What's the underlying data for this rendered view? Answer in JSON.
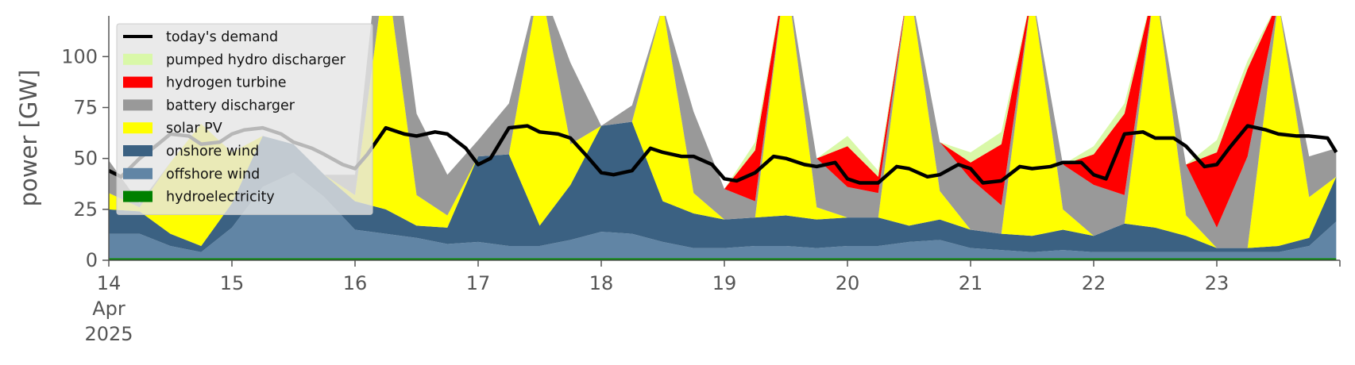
{
  "chart_data": {
    "type": "area",
    "ylabel": "power [GW]",
    "ylim": [
      0,
      120
    ],
    "yticks": [
      0,
      25,
      50,
      75,
      100
    ],
    "xlim": [
      0,
      10
    ],
    "xticks": [
      {
        "x": 0,
        "label": "14",
        "sub": [
          "Apr",
          "2025"
        ]
      },
      {
        "x": 1,
        "label": "15"
      },
      {
        "x": 2,
        "label": "16"
      },
      {
        "x": 3,
        "label": "17"
      },
      {
        "x": 4,
        "label": "18"
      },
      {
        "x": 5,
        "label": "19"
      },
      {
        "x": 6,
        "label": "20"
      },
      {
        "x": 7,
        "label": "21"
      },
      {
        "x": 8,
        "label": "22"
      },
      {
        "x": 9,
        "label": "23"
      }
    ],
    "legend_position": "top-left",
    "grid": false,
    "legend": [
      {
        "name": "today's demand",
        "color": "#000000",
        "kind": "line"
      },
      {
        "name": "pumped hydro discharger",
        "color": "#d9f8a8",
        "kind": "patch"
      },
      {
        "name": "hydrogen turbine",
        "color": "#ff0000",
        "kind": "patch"
      },
      {
        "name": "battery discharger",
        "color": "#999999",
        "kind": "patch"
      },
      {
        "name": "solar PV",
        "color": "#ffff00",
        "kind": "patch"
      },
      {
        "name": "onshore wind",
        "color": "#3b6182",
        "kind": "patch"
      },
      {
        "name": "offshore wind",
        "color": "#6185a5",
        "kind": "patch"
      },
      {
        "name": "hydroelectricity",
        "color": "#008000",
        "kind": "patch"
      }
    ],
    "x": [
      0.0,
      0.25,
      0.5,
      0.75,
      1.0,
      1.25,
      1.5,
      1.75,
      2.0,
      2.25,
      2.5,
      2.75,
      3.0,
      3.25,
      3.5,
      3.75,
      4.0,
      4.25,
      4.5,
      4.75,
      5.0,
      5.25,
      5.5,
      5.75,
      6.0,
      6.25,
      6.5,
      6.75,
      7.0,
      7.25,
      7.5,
      7.75,
      8.0,
      8.25,
      8.5,
      8.75,
      9.0,
      9.25,
      9.5,
      9.75,
      9.97
    ],
    "series": [
      {
        "name": "hydroelectricity",
        "color": "#008000",
        "values": [
          1,
          1,
          1,
          1,
          1,
          1,
          1,
          1,
          1,
          1,
          1,
          1,
          1,
          1,
          1,
          1,
          1,
          1,
          1,
          1,
          1,
          1,
          1,
          1,
          1,
          1,
          1,
          1,
          1,
          1,
          1,
          1,
          1,
          1,
          1,
          1,
          1,
          1,
          1,
          1,
          1
        ]
      },
      {
        "name": "offshore wind",
        "color": "#6185a5",
        "values": [
          12,
          12,
          6,
          3,
          15,
          35,
          42,
          30,
          14,
          12,
          10,
          7,
          8,
          6,
          6,
          9,
          13,
          12,
          8,
          5,
          5,
          6,
          6,
          5,
          6,
          6,
          8,
          9,
          5,
          4,
          3,
          4,
          3,
          3,
          3,
          3,
          3,
          3,
          3,
          6,
          18
        ]
      },
      {
        "name": "onshore wind",
        "color": "#3b6182",
        "values": [
          12,
          11,
          6,
          3,
          12,
          25,
          14,
          11,
          14,
          12,
          6,
          8,
          42,
          45,
          10,
          27,
          52,
          55,
          20,
          17,
          14,
          14,
          15,
          14,
          14,
          14,
          8,
          10,
          9,
          8,
          8,
          10,
          8,
          14,
          12,
          8,
          2,
          2,
          3,
          4,
          22
        ]
      },
      {
        "name": "solar PV",
        "color": "#ffff00",
        "values": [
          8,
          2,
          35,
          60,
          25,
          0,
          0,
          0,
          3,
          120,
          15,
          6,
          0,
          0,
          120,
          20,
          0,
          0,
          96,
          10,
          0,
          0,
          120,
          6,
          0,
          0,
          120,
          14,
          0,
          0,
          120,
          10,
          0,
          0,
          120,
          10,
          0,
          0,
          120,
          20,
          0
        ]
      },
      {
        "name": "battery discharger",
        "color": "#999999",
        "values": [
          16,
          2,
          0,
          0,
          0,
          0,
          0,
          0,
          10,
          40,
          40,
          20,
          8,
          25,
          0,
          40,
          0,
          8,
          0,
          40,
          15,
          8,
          0,
          24,
          15,
          12,
          0,
          24,
          25,
          14,
          0,
          22,
          25,
          14,
          0,
          25,
          10,
          45,
          0,
          20,
          14
        ]
      },
      {
        "name": "hydrogen turbine",
        "color": "#ff0000",
        "values": [
          0,
          0,
          0,
          0,
          0,
          0,
          0,
          0,
          0,
          0,
          0,
          0,
          0,
          0,
          0,
          0,
          0,
          0,
          0,
          0,
          0,
          25,
          0,
          0,
          20,
          8,
          0,
          0,
          8,
          30,
          0,
          0,
          15,
          40,
          0,
          0,
          37,
          43,
          0,
          0,
          0
        ]
      },
      {
        "name": "pumped hydro discharger",
        "color": "#d9f8a8",
        "values": [
          0,
          0,
          0,
          0,
          0,
          0,
          0,
          0,
          0,
          0,
          0,
          0,
          0,
          0,
          0,
          0,
          0,
          0,
          0,
          0,
          0,
          4,
          0,
          0,
          5,
          3,
          0,
          0,
          5,
          6,
          0,
          0,
          4,
          5,
          0,
          0,
          6,
          4,
          0,
          0,
          0
        ]
      }
    ],
    "demand": {
      "name": "today's demand",
      "color": "#000000",
      "x": [
        0,
        0.1,
        0.25,
        0.4,
        0.5,
        0.65,
        0.75,
        0.9,
        1.0,
        1.1,
        1.25,
        1.4,
        1.5,
        1.65,
        1.75,
        1.9,
        2.0,
        2.1,
        2.25,
        2.4,
        2.5,
        2.65,
        2.75,
        2.9,
        3.0,
        3.1,
        3.25,
        3.4,
        3.5,
        3.65,
        3.75,
        3.9,
        4.0,
        4.1,
        4.25,
        4.4,
        4.5,
        4.65,
        4.75,
        4.9,
        5.0,
        5.1,
        5.25,
        5.4,
        5.5,
        5.65,
        5.75,
        5.9,
        6.0,
        6.1,
        6.25,
        6.4,
        6.5,
        6.65,
        6.75,
        6.9,
        7.0,
        7.1,
        7.25,
        7.4,
        7.5,
        7.65,
        7.75,
        7.9,
        8.0,
        8.1,
        8.25,
        8.4,
        8.5,
        8.65,
        8.75,
        8.9,
        9.0,
        9.1,
        9.25,
        9.4,
        9.5,
        9.65,
        9.75,
        9.9,
        9.97
      ],
      "values": [
        44,
        41,
        50,
        57,
        62,
        61,
        57,
        58,
        62,
        64,
        65,
        62,
        58,
        55,
        52,
        47,
        45,
        52,
        65,
        62,
        61,
        63,
        62,
        55,
        47,
        50,
        65,
        66,
        63,
        62,
        60,
        50,
        43,
        42,
        44,
        55,
        53,
        51,
        51,
        47,
        40,
        39,
        43,
        51,
        50,
        47,
        46,
        48,
        40,
        38,
        38,
        46,
        45,
        41,
        42,
        47,
        45,
        38,
        39,
        46,
        45,
        46,
        48,
        48,
        42,
        40,
        62,
        63,
        60,
        60,
        56,
        46,
        47,
        55,
        66,
        64,
        62,
        61,
        61,
        60,
        53
      ]
    }
  }
}
